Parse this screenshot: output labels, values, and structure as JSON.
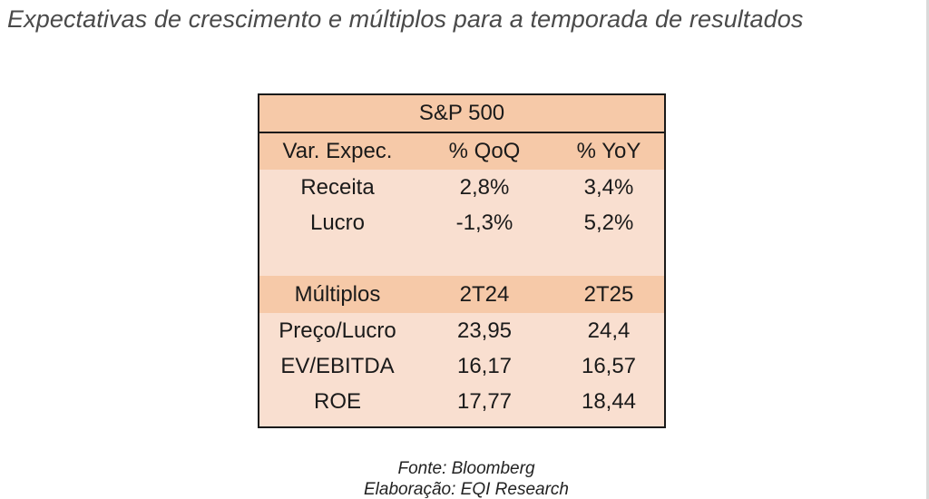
{
  "title": "Expectativas de crescimento e múltiplos para a temporada de resultados",
  "table": {
    "title": "S&P 500",
    "growth_header": [
      "Var. Expec.",
      "% QoQ",
      "% YoY"
    ],
    "growth_rows": [
      [
        "Receita",
        "2,8%",
        "3,4%"
      ],
      [
        "Lucro",
        "-1,3%",
        "5,2%"
      ]
    ],
    "multiples_header": [
      "Múltiplos",
      "2T24",
      "2T25"
    ],
    "multiples_rows": [
      [
        "Preço/Lucro",
        "23,95",
        "24,4"
      ],
      [
        "EV/EBITDA",
        "16,17",
        "16,57"
      ],
      [
        "ROE",
        "17,77",
        "18,44"
      ]
    ]
  },
  "source": "Fonte: Bloomberg",
  "credit": "Elaboração: EQI Research",
  "colors": {
    "header_fill": "#f6c9a8",
    "body_fill": "#f9dfd0",
    "border": "#1a1a1a",
    "title_text": "#4a4a4a"
  }
}
